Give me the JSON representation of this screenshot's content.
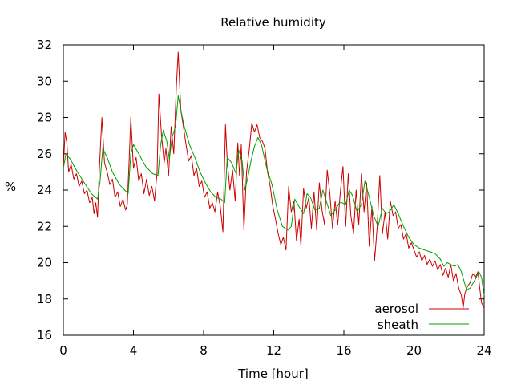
{
  "chart_data": {
    "type": "line",
    "title": "Relative humidity",
    "xlabel": "Time [hour]",
    "ylabel": "%",
    "xlim": [
      0,
      24
    ],
    "ylim": [
      16,
      32
    ],
    "xticks": [
      0,
      4,
      8,
      12,
      16,
      20,
      24
    ],
    "yticks": [
      16,
      18,
      20,
      22,
      24,
      26,
      28,
      30,
      32
    ],
    "grid": false,
    "legend_position": "bottom-right",
    "series": [
      {
        "name": "aerosol",
        "color": "#cc0000",
        "points": [
          [
            0.0,
            25.2
          ],
          [
            0.1,
            27.2
          ],
          [
            0.2,
            26.6
          ],
          [
            0.3,
            25.0
          ],
          [
            0.45,
            25.4
          ],
          [
            0.6,
            24.6
          ],
          [
            0.75,
            24.9
          ],
          [
            0.9,
            24.2
          ],
          [
            1.05,
            24.5
          ],
          [
            1.2,
            23.8
          ],
          [
            1.35,
            24.0
          ],
          [
            1.5,
            23.3
          ],
          [
            1.65,
            23.6
          ],
          [
            1.75,
            22.7
          ],
          [
            1.85,
            23.3
          ],
          [
            1.95,
            22.5
          ],
          [
            2.05,
            25.0
          ],
          [
            2.2,
            28.0
          ],
          [
            2.35,
            25.5
          ],
          [
            2.5,
            25.0
          ],
          [
            2.65,
            24.3
          ],
          [
            2.8,
            24.6
          ],
          [
            2.95,
            23.6
          ],
          [
            3.1,
            23.9
          ],
          [
            3.25,
            23.1
          ],
          [
            3.4,
            23.5
          ],
          [
            3.55,
            22.9
          ],
          [
            3.65,
            23.2
          ],
          [
            3.75,
            25.5
          ],
          [
            3.85,
            28.0
          ],
          [
            4.0,
            25.2
          ],
          [
            4.15,
            25.8
          ],
          [
            4.3,
            24.5
          ],
          [
            4.45,
            24.9
          ],
          [
            4.6,
            23.8
          ],
          [
            4.75,
            24.6
          ],
          [
            4.9,
            23.7
          ],
          [
            5.05,
            24.2
          ],
          [
            5.2,
            23.4
          ],
          [
            5.35,
            25.0
          ],
          [
            5.45,
            29.3
          ],
          [
            5.6,
            27.0
          ],
          [
            5.75,
            25.5
          ],
          [
            5.85,
            26.3
          ],
          [
            6.0,
            24.8
          ],
          [
            6.15,
            27.5
          ],
          [
            6.3,
            26.0
          ],
          [
            6.45,
            29.8
          ],
          [
            6.55,
            31.6
          ],
          [
            6.7,
            28.4
          ],
          [
            6.85,
            27.5
          ],
          [
            7.0,
            26.5
          ],
          [
            7.15,
            25.6
          ],
          [
            7.3,
            25.9
          ],
          [
            7.45,
            24.8
          ],
          [
            7.6,
            25.2
          ],
          [
            7.75,
            24.2
          ],
          [
            7.9,
            24.5
          ],
          [
            8.05,
            23.6
          ],
          [
            8.2,
            23.9
          ],
          [
            8.35,
            23.0
          ],
          [
            8.5,
            23.3
          ],
          [
            8.65,
            22.8
          ],
          [
            8.8,
            23.9
          ],
          [
            8.95,
            23.1
          ],
          [
            9.1,
            21.7
          ],
          [
            9.25,
            27.6
          ],
          [
            9.35,
            25.6
          ],
          [
            9.5,
            24.0
          ],
          [
            9.65,
            25.1
          ],
          [
            9.8,
            23.4
          ],
          [
            9.95,
            26.6
          ],
          [
            10.05,
            24.8
          ],
          [
            10.15,
            26.5
          ],
          [
            10.3,
            21.8
          ],
          [
            10.45,
            25.0
          ],
          [
            10.6,
            26.2
          ],
          [
            10.75,
            27.7
          ],
          [
            10.9,
            27.2
          ],
          [
            11.05,
            27.6
          ],
          [
            11.2,
            26.9
          ],
          [
            11.35,
            26.7
          ],
          [
            11.5,
            26.3
          ],
          [
            11.65,
            25.0
          ],
          [
            11.8,
            24.2
          ],
          [
            11.95,
            23.1
          ],
          [
            12.1,
            22.4
          ],
          [
            12.25,
            21.6
          ],
          [
            12.4,
            21.0
          ],
          [
            12.55,
            21.4
          ],
          [
            12.7,
            20.7
          ],
          [
            12.85,
            24.2
          ],
          [
            13.0,
            22.8
          ],
          [
            13.15,
            23.4
          ],
          [
            13.3,
            21.2
          ],
          [
            13.45,
            22.4
          ],
          [
            13.55,
            20.9
          ],
          [
            13.7,
            24.1
          ],
          [
            13.85,
            23.0
          ],
          [
            14.0,
            23.6
          ],
          [
            14.15,
            21.9
          ],
          [
            14.3,
            23.9
          ],
          [
            14.45,
            21.8
          ],
          [
            14.6,
            24.4
          ],
          [
            14.75,
            22.9
          ],
          [
            14.9,
            22.1
          ],
          [
            15.05,
            25.1
          ],
          [
            15.2,
            23.8
          ],
          [
            15.35,
            21.9
          ],
          [
            15.5,
            23.4
          ],
          [
            15.65,
            22.1
          ],
          [
            15.8,
            23.9
          ],
          [
            15.95,
            25.3
          ],
          [
            16.1,
            22.0
          ],
          [
            16.25,
            24.9
          ],
          [
            16.4,
            22.6
          ],
          [
            16.55,
            21.6
          ],
          [
            16.7,
            24.0
          ],
          [
            16.85,
            22.1
          ],
          [
            17.0,
            24.9
          ],
          [
            17.15,
            22.8
          ],
          [
            17.3,
            24.4
          ],
          [
            17.45,
            20.9
          ],
          [
            17.6,
            23.1
          ],
          [
            17.75,
            20.1
          ],
          [
            17.9,
            22.0
          ],
          [
            18.05,
            24.8
          ],
          [
            18.2,
            21.6
          ],
          [
            18.35,
            22.8
          ],
          [
            18.5,
            21.3
          ],
          [
            18.65,
            23.4
          ],
          [
            18.8,
            22.6
          ],
          [
            18.95,
            22.8
          ],
          [
            19.1,
            21.9
          ],
          [
            19.25,
            22.1
          ],
          [
            19.4,
            21.3
          ],
          [
            19.55,
            21.6
          ],
          [
            19.7,
            20.8
          ],
          [
            19.85,
            21.1
          ],
          [
            20.0,
            20.7
          ],
          [
            20.15,
            20.3
          ],
          [
            20.3,
            20.6
          ],
          [
            20.45,
            20.1
          ],
          [
            20.6,
            20.4
          ],
          [
            20.75,
            19.9
          ],
          [
            20.9,
            20.2
          ],
          [
            21.05,
            19.8
          ],
          [
            21.2,
            20.1
          ],
          [
            21.35,
            19.6
          ],
          [
            21.5,
            19.9
          ],
          [
            21.65,
            19.3
          ],
          [
            21.8,
            19.7
          ],
          [
            21.95,
            19.2
          ],
          [
            22.1,
            19.9
          ],
          [
            22.25,
            19.0
          ],
          [
            22.4,
            19.4
          ],
          [
            22.55,
            18.6
          ],
          [
            22.7,
            18.2
          ],
          [
            22.8,
            17.5
          ],
          [
            22.9,
            18.3
          ],
          [
            23.05,
            18.7
          ],
          [
            23.2,
            18.9
          ],
          [
            23.35,
            19.4
          ],
          [
            23.5,
            19.2
          ],
          [
            23.65,
            19.5
          ],
          [
            23.75,
            18.6
          ],
          [
            23.85,
            17.8
          ],
          [
            24.0,
            17.5
          ]
        ]
      },
      {
        "name": "sheath",
        "color": "#00a000",
        "points": [
          [
            0.0,
            25.2
          ],
          [
            0.15,
            26.0
          ],
          [
            0.4,
            25.7
          ],
          [
            0.8,
            25.0
          ],
          [
            1.2,
            24.4
          ],
          [
            1.6,
            23.8
          ],
          [
            1.95,
            23.5
          ],
          [
            2.1,
            24.5
          ],
          [
            2.25,
            26.3
          ],
          [
            2.5,
            25.8
          ],
          [
            2.8,
            25.0
          ],
          [
            3.2,
            24.3
          ],
          [
            3.5,
            24.0
          ],
          [
            3.7,
            23.8
          ],
          [
            3.85,
            26.0
          ],
          [
            4.0,
            26.5
          ],
          [
            4.3,
            26.0
          ],
          [
            4.7,
            25.3
          ],
          [
            5.1,
            24.9
          ],
          [
            5.4,
            24.8
          ],
          [
            5.55,
            26.5
          ],
          [
            5.7,
            27.3
          ],
          [
            5.9,
            26.7
          ],
          [
            6.05,
            25.7
          ],
          [
            6.2,
            26.9
          ],
          [
            6.4,
            27.5
          ],
          [
            6.55,
            29.2
          ],
          [
            6.7,
            28.4
          ],
          [
            6.9,
            27.5
          ],
          [
            7.2,
            26.5
          ],
          [
            7.5,
            25.8
          ],
          [
            7.8,
            25.0
          ],
          [
            8.1,
            24.4
          ],
          [
            8.4,
            23.9
          ],
          [
            8.7,
            23.6
          ],
          [
            9.0,
            23.5
          ],
          [
            9.2,
            23.3
          ],
          [
            9.35,
            25.8
          ],
          [
            9.6,
            25.5
          ],
          [
            9.85,
            24.9
          ],
          [
            10.0,
            26.2
          ],
          [
            10.2,
            25.6
          ],
          [
            10.35,
            24.0
          ],
          [
            10.5,
            24.6
          ],
          [
            10.7,
            25.6
          ],
          [
            10.9,
            26.4
          ],
          [
            11.1,
            26.9
          ],
          [
            11.3,
            26.5
          ],
          [
            11.6,
            25.2
          ],
          [
            11.9,
            24.3
          ],
          [
            12.2,
            22.9
          ],
          [
            12.5,
            22.0
          ],
          [
            12.8,
            21.8
          ],
          [
            13.0,
            22.0
          ],
          [
            13.2,
            23.5
          ],
          [
            13.5,
            23.0
          ],
          [
            13.7,
            22.7
          ],
          [
            13.9,
            23.8
          ],
          [
            14.1,
            23.6
          ],
          [
            14.35,
            22.9
          ],
          [
            14.6,
            23.0
          ],
          [
            14.8,
            24.0
          ],
          [
            15.0,
            23.4
          ],
          [
            15.25,
            22.6
          ],
          [
            15.5,
            22.9
          ],
          [
            15.75,
            23.3
          ],
          [
            15.9,
            23.3
          ],
          [
            16.1,
            23.2
          ],
          [
            16.3,
            24.0
          ],
          [
            16.5,
            23.7
          ],
          [
            16.75,
            22.8
          ],
          [
            17.0,
            23.2
          ],
          [
            17.2,
            24.5
          ],
          [
            17.45,
            23.6
          ],
          [
            17.7,
            22.6
          ],
          [
            17.95,
            22.0
          ],
          [
            18.2,
            23.0
          ],
          [
            18.4,
            22.7
          ],
          [
            18.6,
            22.8
          ],
          [
            18.85,
            23.2
          ],
          [
            19.1,
            22.7
          ],
          [
            19.4,
            22.0
          ],
          [
            19.7,
            21.4
          ],
          [
            20.0,
            21.0
          ],
          [
            20.3,
            20.8
          ],
          [
            20.6,
            20.7
          ],
          [
            20.9,
            20.6
          ],
          [
            21.2,
            20.5
          ],
          [
            21.5,
            20.2
          ],
          [
            21.7,
            19.8
          ],
          [
            21.9,
            20.0
          ],
          [
            22.1,
            19.9
          ],
          [
            22.3,
            19.8
          ],
          [
            22.5,
            19.9
          ],
          [
            22.7,
            19.5
          ],
          [
            22.85,
            19.0
          ],
          [
            23.0,
            18.5
          ],
          [
            23.2,
            18.6
          ],
          [
            23.5,
            19.1
          ],
          [
            23.7,
            19.5
          ],
          [
            23.85,
            19.2
          ],
          [
            24.0,
            18.2
          ]
        ]
      }
    ]
  }
}
